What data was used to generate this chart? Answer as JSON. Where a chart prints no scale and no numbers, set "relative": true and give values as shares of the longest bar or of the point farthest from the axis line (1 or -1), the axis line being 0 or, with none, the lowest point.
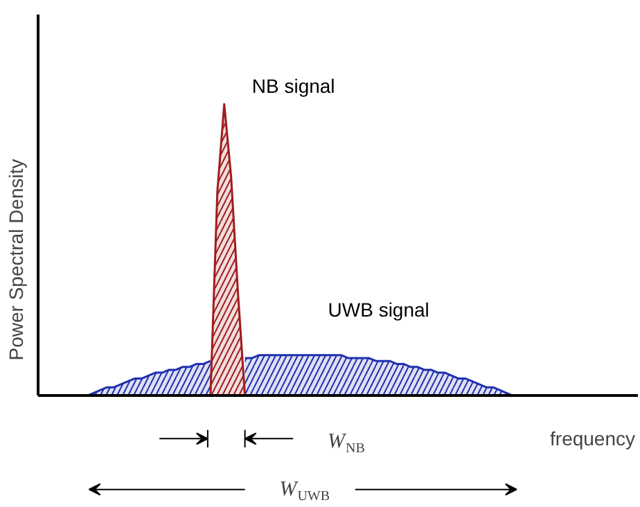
{
  "chart_data": {
    "type": "area",
    "relative": true,
    "ylabel": "Power Spectral Density",
    "legend": false,
    "categories": [
      null,
      null,
      null,
      null,
      null,
      null,
      null,
      null,
      null,
      null,
      null,
      null,
      null,
      null,
      null,
      null,
      null,
      null,
      null,
      null,
      null,
      null,
      null,
      null,
      null,
      null,
      null,
      null,
      null,
      null,
      null,
      null,
      null,
      null,
      null,
      null,
      null,
      null,
      null,
      null,
      null,
      null,
      null,
      null,
      null,
      null,
      null,
      null,
      null,
      null,
      null,
      null,
      null,
      null,
      null,
      null,
      null,
      null,
      null,
      null,
      null,
      null,
      null,
      null,
      null,
      null,
      null,
      null,
      null,
      null,
      null,
      null,
      null,
      null,
      null,
      null,
      null,
      null,
      null,
      null,
      null,
      null,
      null,
      null
    ],
    "series": [
      {
        "name": "UWB signal",
        "color": "#1f2fb0",
        "values": [
          null,
          null,
          null,
          null,
          null,
          null,
          null,
          0,
          0.01,
          0.02,
          0.03,
          0.03,
          0.04,
          0.05,
          0.06,
          0.06,
          0.07,
          0.08,
          0.08,
          0.09,
          0.09,
          0.1,
          0.1,
          0.11,
          0.11,
          0.12,
          null,
          null,
          null,
          null,
          0.13,
          0.13,
          0.14,
          0.14,
          0.14,
          0.14,
          0.14,
          0.14,
          0.14,
          0.14,
          0.14,
          0.14,
          0.14,
          0.14,
          0.14,
          0.13,
          0.13,
          0.13,
          0.13,
          0.12,
          0.12,
          0.12,
          0.11,
          0.11,
          0.1,
          0.1,
          0.09,
          0.09,
          0.08,
          0.08,
          0.07,
          0.06,
          0.06,
          0.05,
          0.04,
          0.03,
          0.03,
          0.02,
          0.01,
          0,
          null,
          null,
          null,
          null,
          null,
          null,
          null,
          null,
          null,
          null,
          null,
          null,
          null,
          null
        ]
      },
      {
        "name": "NB signal",
        "color": "#a01c1c",
        "values": [
          null,
          null,
          null,
          null,
          null,
          null,
          null,
          null,
          null,
          null,
          null,
          null,
          null,
          null,
          null,
          null,
          null,
          null,
          null,
          null,
          null,
          null,
          null,
          null,
          null,
          0,
          0.7,
          1,
          0.75,
          0.35,
          0,
          null,
          null,
          null,
          null,
          null,
          null,
          null,
          null,
          null,
          null,
          null,
          null,
          null,
          null,
          null,
          null,
          null,
          null,
          null,
          null,
          null,
          null,
          null,
          null,
          null,
          null,
          null,
          null,
          null,
          null,
          null,
          null,
          null,
          null,
          null,
          null,
          null,
          null,
          null,
          null,
          null,
          null,
          null,
          null,
          null,
          null,
          null,
          null,
          null,
          null,
          null,
          null,
          null
        ]
      }
    ],
    "annotations": [
      "W$_{NB}$",
      "W$_{UWB}$",
      "frequency"
    ]
  }
}
